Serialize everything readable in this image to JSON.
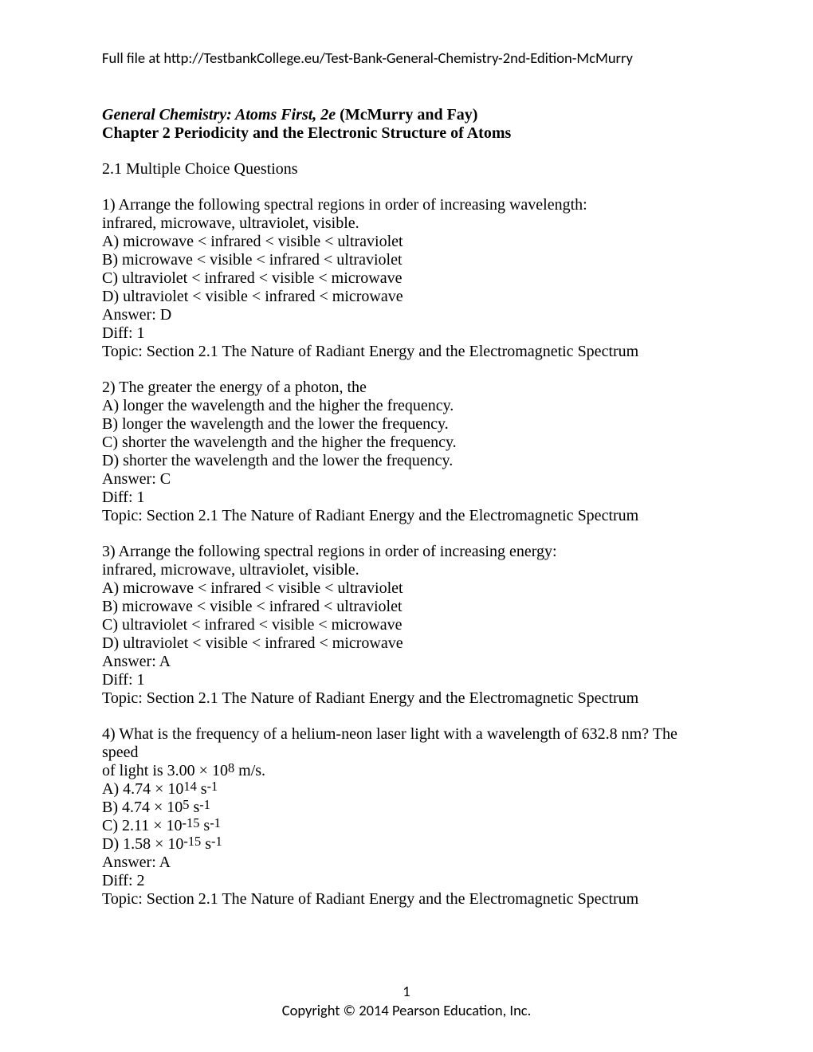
{
  "header": {
    "link_text": "Full file at http://TestbankCollege.eu/Test-Bank-General-Chemistry-2nd-Edition-McMurry"
  },
  "title": {
    "book_italic": "General Chemistry: Atoms First, 2e",
    "book_rest": " (McMurry and Fay)",
    "chapter": "Chapter 2   Periodicity and the Electronic Structure of Atoms"
  },
  "section_heading": "2.1   Multiple Choice Questions",
  "questions": [
    {
      "prompt_lines": [
        "1) Arrange the following spectral regions in order of increasing wavelength:",
        "infrared, microwave, ultraviolet, visible."
      ],
      "choices": [
        "A) microwave < infrared < visible < ultraviolet",
        "B) microwave < visible < infrared < ultraviolet",
        "C) ultraviolet < infrared < visible < microwave",
        "D) ultraviolet < visible < infrared < microwave"
      ],
      "answer": "Answer:  D",
      "diff": "Diff: 1",
      "topic": "Topic:  Section 2.1 The Nature of Radiant Energy and the Electromagnetic Spectrum"
    },
    {
      "prompt_lines": [
        "2) The greater the energy of a photon, the"
      ],
      "choices": [
        "A) longer the wavelength and the higher the frequency.",
        "B) longer the wavelength and the lower the frequency.",
        "C) shorter the wavelength and the higher the frequency.",
        "D) shorter the wavelength and the lower the frequency."
      ],
      "answer": "Answer:  C",
      "diff": "Diff: 1",
      "topic": "Topic:  Section 2.1 The Nature of Radiant Energy and the Electromagnetic Spectrum"
    },
    {
      "prompt_lines": [
        "3) Arrange the following spectral regions in order of increasing energy:",
        "infrared, microwave, ultraviolet, visible."
      ],
      "choices": [
        "A) microwave < infrared < visible < ultraviolet",
        "B) microwave < visible < infrared < ultraviolet",
        "C) ultraviolet < infrared < visible < microwave",
        "D) ultraviolet < visible < infrared < microwave"
      ],
      "answer": "Answer:  A",
      "diff": "Diff: 1",
      "topic": "Topic:  Section 2.1 The Nature of Radiant Energy and the Electromagnetic Spectrum"
    }
  ],
  "q4": {
    "prompt_part1": "4) What is the frequency of a helium-neon laser light with a wavelength of 632.8 nm? The speed",
    "prompt_part2_pre": "of light is 3.00 × 10",
    "prompt_part2_sup": "8",
    "prompt_part2_post": " m/s.",
    "choices": [
      {
        "pre": "A) 4.74 × 10",
        "sup1": "14",
        "mid": " s",
        "sup2": "-1"
      },
      {
        "pre": "B) 4.74 × 10",
        "sup1": "5",
        "mid": " s",
        "sup2": "-1"
      },
      {
        "pre": "C) 2.11 × 10",
        "sup1": "-15",
        "mid": " s",
        "sup2": "-1"
      },
      {
        "pre": "D) 1.58 × 10",
        "sup1": "-15",
        "mid": " s",
        "sup2": "-1"
      }
    ],
    "answer": "Answer:  A",
    "diff": "Diff: 2",
    "topic": "Topic:  Section 2.1 The Nature of Radiant Energy and the Electromagnetic Spectrum"
  },
  "footer": {
    "page_number": "1",
    "copyright": "Copyright © 2014 Pearson Education, Inc."
  }
}
